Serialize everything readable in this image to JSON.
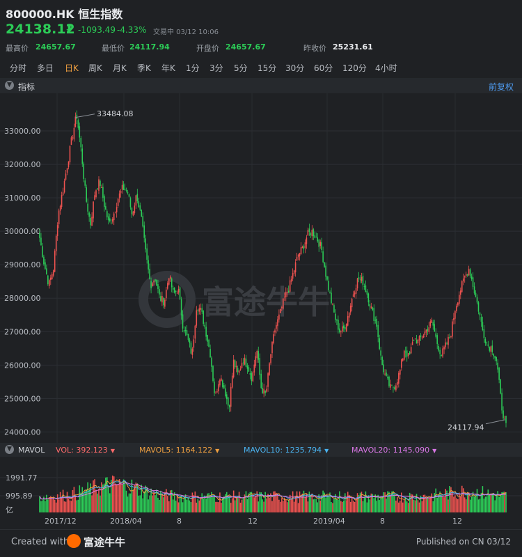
{
  "header": {
    "title": "800000.HK 恒生指数",
    "price": "24138.12",
    "change": "-1093.49",
    "pct": "-4.33%",
    "status": "交易中 03/12 10:06",
    "stats": [
      {
        "label": "最高价",
        "value": "24657.67"
      },
      {
        "label": "最低价",
        "value": "24117.94"
      },
      {
        "label": "开盘价",
        "value": "24657.67"
      },
      {
        "label": "昨收价",
        "value": "25231.61"
      }
    ]
  },
  "tabs": [
    {
      "label": "分时",
      "active": false
    },
    {
      "label": "多日",
      "active": false
    },
    {
      "label": "日K",
      "active": true
    },
    {
      "label": "周K",
      "active": false
    },
    {
      "label": "月K",
      "active": false
    },
    {
      "label": "季K",
      "active": false
    },
    {
      "label": "年K",
      "active": false
    },
    {
      "label": "1分",
      "active": false
    },
    {
      "label": "3分",
      "active": false
    },
    {
      "label": "5分",
      "active": false
    },
    {
      "label": "15分",
      "active": false
    },
    {
      "label": "30分",
      "active": false
    },
    {
      "label": "60分",
      "active": false
    },
    {
      "label": "120分",
      "active": false
    },
    {
      "label": "4小时",
      "active": false
    }
  ],
  "indicator_bar": {
    "label": "指标",
    "adjust": "前复权"
  },
  "mavol": {
    "label": "MAVOL",
    "items": [
      {
        "text": "VOL: 392.123",
        "color": "#ff6b6b"
      },
      {
        "text": "MAVOL5: 1164.122",
        "color": "#f0a040"
      },
      {
        "text": "MAVOL10: 1235.794",
        "color": "#4ab3f0"
      },
      {
        "text": "MAVOL20: 1145.090",
        "color": "#d977e6"
      }
    ],
    "dropdown_icon": "caret-down"
  },
  "watermark": "富途牛牛",
  "footer": {
    "created": "Created with",
    "brand": "富途牛牛",
    "published": "Published on CN 03/12"
  },
  "colors": {
    "up": "#ef5350",
    "down": "#2ccc57",
    "bg": "#1f2124"
  },
  "chart_data": {
    "type": "candlestick",
    "ylim": [
      23800,
      34000
    ],
    "yticks": [
      "33000.00",
      "32000.00",
      "31000.00",
      "30000.00",
      "29000.00",
      "28000.00",
      "27000.00",
      "26000.00",
      "25000.00",
      "24000.00"
    ],
    "xticks": [
      "2017/12",
      "2018/04",
      "8",
      "12",
      "2019/04",
      "8",
      "12"
    ],
    "annotations": {
      "high": "33484.08",
      "low": "24117.94"
    },
    "close_path": [
      29800,
      29000,
      28400,
      28900,
      30500,
      31200,
      32000,
      32800,
      33484,
      32400,
      31000,
      30200,
      31200,
      31500,
      30800,
      30200,
      30500,
      31000,
      31300,
      31200,
      30500,
      31100,
      30400,
      29300,
      28400,
      28600,
      28000,
      27900,
      28700,
      28100,
      28300,
      27200,
      26800,
      26300,
      27800,
      27600,
      27000,
      26300,
      25000,
      25700,
      25300,
      24700,
      26100,
      25700,
      26200,
      26000,
      25600,
      26500,
      25300,
      25100,
      26300,
      27100,
      27500,
      28000,
      28300,
      28800,
      29300,
      29500,
      29900,
      30000,
      29800,
      29500,
      28700,
      28000,
      27400,
      27000,
      27100,
      27600,
      28200,
      28600,
      28500,
      28100,
      27600,
      27200,
      26100,
      25600,
      25300,
      25400,
      25800,
      26500,
      26200,
      26800,
      26700,
      26900,
      27100,
      27300,
      26700,
      26300,
      26600,
      26900,
      27700,
      28200,
      28600,
      28900,
      28300,
      27700,
      27000,
      26600,
      26500,
      26100,
      24800,
      24138
    ],
    "volume_yticks": [
      "1991.77",
      "995.89",
      "亿"
    ]
  }
}
